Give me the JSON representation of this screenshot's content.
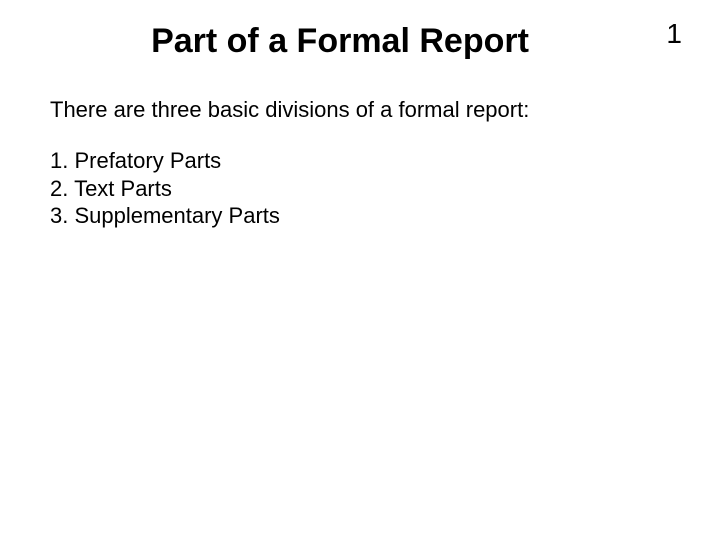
{
  "page_number": "1",
  "title": "Part of a Formal Report",
  "intro": "There are three basic divisions of a formal report:",
  "items": [
    "1. Prefatory Parts",
    "2. Text Parts",
    "3. Supplementary Parts"
  ],
  "colors": {
    "background": "#ffffff",
    "text": "#000000"
  },
  "typography": {
    "title_fontsize": 34,
    "title_weight": "bold",
    "body_fontsize": 22,
    "page_number_fontsize": 28,
    "font_family": "Arial"
  }
}
